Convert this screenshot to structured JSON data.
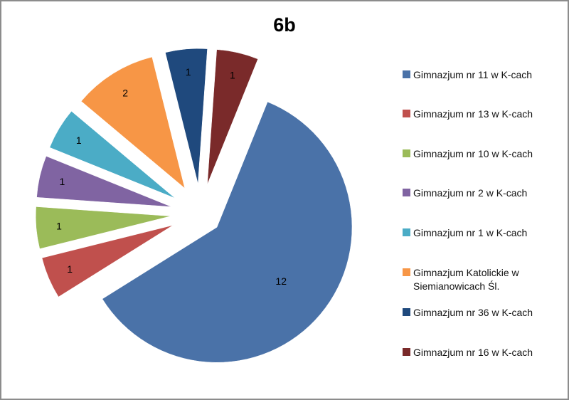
{
  "chart_data": {
    "type": "pie",
    "title": "6b",
    "exploded": true,
    "legend_position": "right",
    "slices": [
      {
        "label": "Gimnazjum nr 11 w K-cach",
        "value": 12,
        "color": "#4a72a8"
      },
      {
        "label": "Gimnazjum nr 13 w K-cach",
        "value": 1,
        "color": "#c0504d"
      },
      {
        "label": "Gimnazjum nr 10 w K-cach",
        "value": 1,
        "color": "#9bbb59"
      },
      {
        "label": "Gimnazjum nr 2 w K-cach",
        "value": 1,
        "color": "#8064a2"
      },
      {
        "label": "Gimnazjum nr 1 w K-cach",
        "value": 1,
        "color": "#4bacc6"
      },
      {
        "label": "Gimnazjum Katolickie w Siemianowicach Śl.",
        "value": 2,
        "color": "#f79646"
      },
      {
        "label": "Gimnazjum nr 36 w K-cach",
        "value": 1,
        "color": "#1f497d"
      },
      {
        "label": "Gimnazjum nr 16 w K-cach",
        "value": 1,
        "color": "#7a2a2a"
      }
    ]
  }
}
